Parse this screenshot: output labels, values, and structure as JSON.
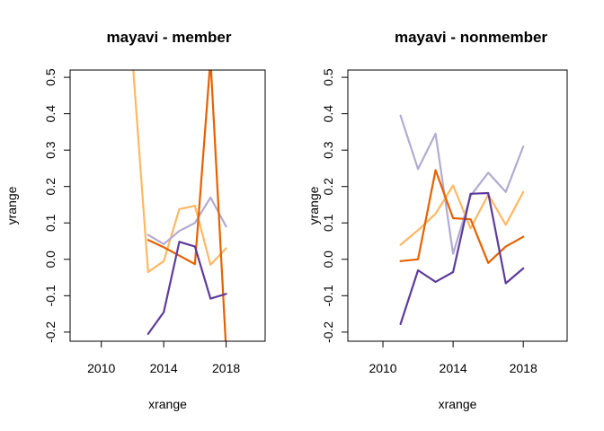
{
  "chart_data": [
    {
      "type": "line",
      "title": "mayavi - member",
      "xlabel": "xrange",
      "ylabel": "yrange",
      "xlim": [
        2008,
        2020.5
      ],
      "ylim": [
        -0.225,
        0.52
      ],
      "xticks": [
        "2010",
        "2014",
        "2018"
      ],
      "yticks": [
        "-0.2",
        "-0.1",
        "0.0",
        "0.1",
        "0.2",
        "0.3",
        "0.4",
        "0.5"
      ],
      "series": [
        {
          "color": "#fdb863",
          "x": [
            2012,
            2013,
            2014,
            2015,
            2016,
            2017,
            2018
          ],
          "y": [
            0.55,
            -0.035,
            -0.005,
            0.138,
            0.147,
            -0.015,
            0.03
          ]
        },
        {
          "color": "#b2abd2",
          "x": [
            2013,
            2014,
            2015,
            2016,
            2017,
            2018
          ],
          "y": [
            0.067,
            0.042,
            0.078,
            0.1,
            0.17,
            0.09
          ]
        },
        {
          "color": "#e66101",
          "x": [
            2013,
            2014,
            2015,
            2016,
            2017,
            2018
          ],
          "y": [
            0.053,
            0.033,
            0.01,
            -0.013,
            0.55,
            -0.25
          ]
        },
        {
          "color": "#5e3c99",
          "x": [
            2013,
            2014,
            2015,
            2016,
            2017,
            2018
          ],
          "y": [
            -0.205,
            -0.145,
            0.048,
            0.035,
            -0.108,
            -0.095
          ]
        }
      ]
    },
    {
      "type": "line",
      "title": "mayavi - nonmember",
      "xlabel": "xrange",
      "ylabel": "yrange",
      "xlim": [
        2008,
        2020.5
      ],
      "ylim": [
        -0.225,
        0.52
      ],
      "xticks": [
        "2010",
        "2014",
        "2018"
      ],
      "yticks": [
        "-0.2",
        "-0.1",
        "0.0",
        "0.1",
        "0.2",
        "0.3",
        "0.4",
        "0.5"
      ],
      "series": [
        {
          "color": "#b2abd2",
          "x": [
            2011,
            2012,
            2013,
            2014,
            2015,
            2016,
            2017,
            2018
          ],
          "y": [
            0.395,
            0.248,
            0.345,
            0.015,
            0.175,
            0.238,
            0.185,
            0.31
          ]
        },
        {
          "color": "#fdb863",
          "x": [
            2011,
            2012,
            2013,
            2014,
            2015,
            2016,
            2017,
            2018
          ],
          "y": [
            0.04,
            0.08,
            0.125,
            0.203,
            0.085,
            0.178,
            0.095,
            0.185
          ]
        },
        {
          "color": "#e66101",
          "x": [
            2011,
            2012,
            2013,
            2014,
            2015,
            2016,
            2017,
            2018
          ],
          "y": [
            -0.005,
            0.0,
            0.245,
            0.113,
            0.11,
            -0.01,
            0.035,
            0.062
          ]
        },
        {
          "color": "#5e3c99",
          "x": [
            2011,
            2012,
            2013,
            2014,
            2015,
            2016,
            2017,
            2018
          ],
          "y": [
            -0.178,
            -0.03,
            -0.062,
            -0.035,
            0.18,
            0.182,
            -0.066,
            -0.025
          ]
        }
      ]
    }
  ]
}
